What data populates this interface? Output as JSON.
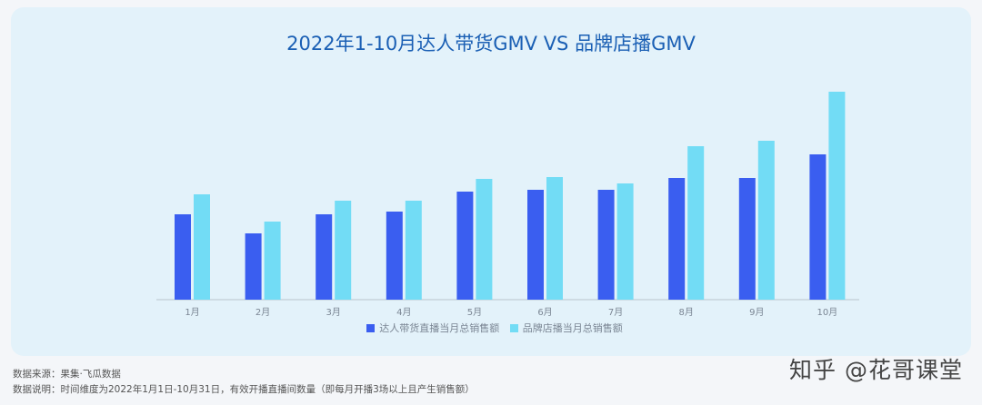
{
  "chart_data": {
    "type": "bar",
    "title": "2022年1-10月达人带货GMV VS 品牌店播GMV",
    "categories": [
      "1月",
      "2月",
      "3月",
      "4月",
      "5月",
      "6月",
      "7月",
      "8月",
      "9月",
      "10月"
    ],
    "series": [
      {
        "name": "达人带货直播当月总销售额",
        "color": "#3a5ef0",
        "values": [
          94,
          73,
          94,
          97,
          119,
          121,
          121,
          134,
          134,
          160
        ]
      },
      {
        "name": "品牌店播当月总销售额",
        "color": "#72dcf5",
        "values": [
          116,
          86,
          109,
          109,
          133,
          135,
          128,
          169,
          175,
          229
        ]
      }
    ],
    "ylim": [
      0,
      240
    ],
    "grid": false,
    "legend": "bottom"
  },
  "footer": {
    "source": "数据来源：果集·飞瓜数据",
    "note": "数据说明：时间维度为2022年1月1日-10月31日，有效开播直播间数量（即每月开播3场以上且产生销售额）"
  },
  "watermark": "知乎 @花哥课堂"
}
